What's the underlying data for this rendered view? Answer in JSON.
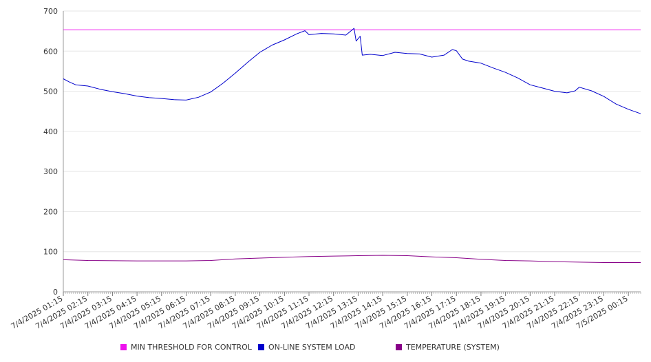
{
  "chart_data": {
    "type": "line",
    "title": "",
    "xlabel": "",
    "ylabel": "",
    "ylim": [
      0,
      700
    ],
    "yticks": [
      0,
      100,
      200,
      300,
      400,
      500,
      600,
      700
    ],
    "x_tick_labels": [
      "7/4/2025 01:15",
      "7/4/2025 02:15",
      "7/4/2025 03:15",
      "7/4/2025 04:15",
      "7/4/2025 05:15",
      "7/4/2025 06:15",
      "7/4/2025 07:15",
      "7/4/2025 08:15",
      "7/4/2025 09:15",
      "7/4/2025 10:15",
      "7/4/2025 11:15",
      "7/4/2025 12:15",
      "7/4/2025 13:15",
      "7/4/2025 14:15",
      "7/4/2025 15:15",
      "7/4/2025 16:15",
      "7/4/2025 17:15",
      "7/4/2025 18:15",
      "7/4/2025 19:15",
      "7/4/2025 20:15",
      "7/4/2025 21:15",
      "7/4/2025 22:15",
      "7/4/2025 23:15",
      "7/5/2025 00:15"
    ],
    "grid": true,
    "legend_position": "bottom",
    "series": [
      {
        "name": "MIN THRESHOLD FOR CONTROL",
        "color": "#ee11ee",
        "points": [
          [
            "7/4/2025 01:15",
            653
          ],
          [
            "7/5/2025 00:15",
            653
          ]
        ]
      },
      {
        "name": "ON-LINE SYSTEM LOAD",
        "color": "#0000cc",
        "points": [
          [
            "7/4/2025 01:15",
            531
          ],
          [
            "7/4/2025 01:30",
            523
          ],
          [
            "7/4/2025 01:45",
            516
          ],
          [
            "7/4/2025 02:15",
            513
          ],
          [
            "7/4/2025 02:45",
            505
          ],
          [
            "7/4/2025 03:15",
            499
          ],
          [
            "7/4/2025 03:45",
            494
          ],
          [
            "7/4/2025 04:15",
            488
          ],
          [
            "7/4/2025 04:45",
            484
          ],
          [
            "7/4/2025 05:15",
            482
          ],
          [
            "7/4/2025 05:45",
            479
          ],
          [
            "7/4/2025 06:15",
            478
          ],
          [
            "7/4/2025 06:45",
            485
          ],
          [
            "7/4/2025 07:15",
            498
          ],
          [
            "7/4/2025 07:45",
            520
          ],
          [
            "7/4/2025 08:15",
            545
          ],
          [
            "7/4/2025 08:45",
            572
          ],
          [
            "7/4/2025 09:15",
            597
          ],
          [
            "7/4/2025 09:45",
            615
          ],
          [
            "7/4/2025 10:15",
            628
          ],
          [
            "7/4/2025 10:45",
            643
          ],
          [
            "7/4/2025 11:05",
            651
          ],
          [
            "7/4/2025 11:15",
            641
          ],
          [
            "7/4/2025 11:45",
            644
          ],
          [
            "7/4/2025 12:15",
            643
          ],
          [
            "7/4/2025 12:45",
            640
          ],
          [
            "7/4/2025 13:05",
            657
          ],
          [
            "7/4/2025 13:10",
            625
          ],
          [
            "7/4/2025 13:20",
            637
          ],
          [
            "7/4/2025 13:25",
            590
          ],
          [
            "7/4/2025 13:45",
            592
          ],
          [
            "7/4/2025 14:15",
            589
          ],
          [
            "7/4/2025 14:45",
            597
          ],
          [
            "7/4/2025 15:15",
            594
          ],
          [
            "7/4/2025 15:45",
            593
          ],
          [
            "7/4/2025 16:15",
            585
          ],
          [
            "7/4/2025 16:45",
            590
          ],
          [
            "7/4/2025 17:05",
            604
          ],
          [
            "7/4/2025 17:15",
            601
          ],
          [
            "7/4/2025 17:30",
            580
          ],
          [
            "7/4/2025 17:45",
            575
          ],
          [
            "7/4/2025 18:15",
            570
          ],
          [
            "7/4/2025 18:45",
            558
          ],
          [
            "7/4/2025 19:15",
            547
          ],
          [
            "7/4/2025 19:45",
            533
          ],
          [
            "7/4/2025 20:15",
            516
          ],
          [
            "7/4/2025 20:45",
            508
          ],
          [
            "7/4/2025 21:15",
            500
          ],
          [
            "7/4/2025 21:45",
            496
          ],
          [
            "7/4/2025 22:05",
            501
          ],
          [
            "7/4/2025 22:15",
            510
          ],
          [
            "7/4/2025 22:45",
            501
          ],
          [
            "7/4/2025 23:15",
            487
          ],
          [
            "7/4/2025 23:45",
            468
          ],
          [
            "7/5/2025 00:15",
            455
          ],
          [
            "7/5/2025 00:45",
            444
          ]
        ]
      },
      {
        "name": "TEMPERATURE (SYSTEM)",
        "color": "#880088",
        "points": [
          [
            "7/4/2025 01:15",
            80
          ],
          [
            "7/4/2025 02:15",
            78
          ],
          [
            "7/4/2025 04:15",
            77
          ],
          [
            "7/4/2025 06:15",
            77
          ],
          [
            "7/4/2025 07:15",
            78
          ],
          [
            "7/4/2025 08:15",
            82
          ],
          [
            "7/4/2025 09:15",
            84
          ],
          [
            "7/4/2025 10:15",
            86
          ],
          [
            "7/4/2025 11:15",
            88
          ],
          [
            "7/4/2025 12:15",
            89
          ],
          [
            "7/4/2025 13:15",
            90
          ],
          [
            "7/4/2025 14:15",
            91
          ],
          [
            "7/4/2025 15:15",
            90
          ],
          [
            "7/4/2025 16:15",
            87
          ],
          [
            "7/4/2025 17:15",
            85
          ],
          [
            "7/4/2025 18:15",
            81
          ],
          [
            "7/4/2025 19:15",
            78
          ],
          [
            "7/4/2025 20:15",
            77
          ],
          [
            "7/4/2025 21:15",
            75
          ],
          [
            "7/4/2025 22:15",
            74
          ],
          [
            "7/4/2025 23:15",
            73
          ],
          [
            "7/5/2025 00:15",
            73
          ],
          [
            "7/5/2025 00:45",
            73
          ]
        ]
      }
    ]
  }
}
